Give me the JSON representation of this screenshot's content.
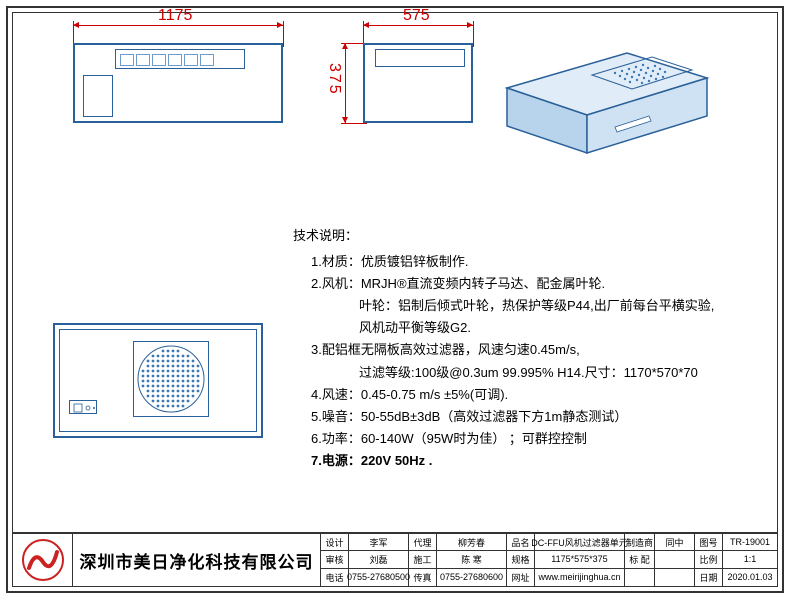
{
  "colors": {
    "outline": "#333333",
    "drawing_stroke": "#2a6099",
    "dimension": "#cc0000",
    "text": "#000000",
    "background": "#ffffff",
    "logo_red": "#cc2222",
    "iso_fill": "#e0ecf7",
    "iso_fill_dark": "#b8d4ec",
    "fan_dot": "#3a78b5"
  },
  "dimensions": {
    "width": "1175",
    "depth": "575",
    "height": "375",
    "units": "mm"
  },
  "views": {
    "front": {
      "type": "orthographic",
      "shows": "长边正视图"
    },
    "side": {
      "type": "orthographic",
      "shows": "短边正视图"
    },
    "top": {
      "type": "plan",
      "shows": "俯视图",
      "fan_grille_dots_approx": 90
    },
    "iso": {
      "type": "isometric",
      "shows": "立体图"
    }
  },
  "spec": {
    "title": "技术说明：",
    "items": [
      "1.材质：优质镀铝锌板制作.",
      "2.风机：MRJH®直流变频内转子马达、配金属叶轮.",
      "  叶轮：铝制后倾式叶轮，热保护等级P44,出厂前每台平横实验,",
      "  风机动平衡等级G2.",
      "3.配铝框无隔板高效过滤器，风速匀速0.45m/s,",
      "  过滤等级:100级@0.3um 99.995% H14.尺寸：1170*570*70",
      "4.风速：0.45-0.75 m/s ±5%(可调).",
      "5.噪音：50-55dB±3dB（高效过滤器下方1m静态测试）",
      "6.功率：60-140W（95W时为佳） ；可群控控制",
      "7.电源：220V   50Hz ."
    ]
  },
  "title_block": {
    "company": "深圳市美日净化科技有限公司",
    "rows": {
      "r1": {
        "设计": "李军",
        "代理": "柳芳春",
        "品名": "DC-FFU风机过滤器单元",
        "制造商": "同中",
        "图号": "TR-19001"
      },
      "r2": {
        "审核": "刘磊",
        "施工": "陈 寒",
        "规格": "1175*575*375",
        "标 配": "",
        "比例": "1:1"
      },
      "r3": {
        "电话": "0755-27680500",
        "传真": "0755-27680600",
        "网址": "www.meirijinghua.cn",
        "日期": "2020.01.03"
      }
    }
  },
  "typography": {
    "spec_fontsize_pt": 10,
    "company_fontsize_pt": 13,
    "titleblock_fontsize_pt": 7,
    "dimension_fontsize_pt": 11
  }
}
